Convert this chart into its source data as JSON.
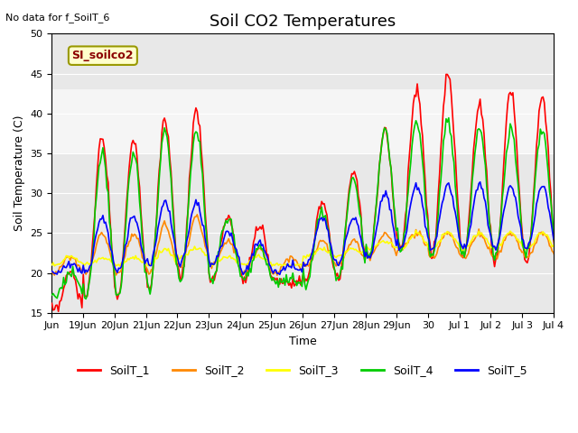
{
  "title": "Soil CO2 Temperatures",
  "xlabel": "Time",
  "ylabel": "Soil Temperature (C)",
  "note": "No data for f_SoilT_6",
  "legend_label": "SI_soilco2",
  "ylim": [
    15,
    50
  ],
  "series_colors": {
    "SoilT_1": "#ff0000",
    "SoilT_2": "#ff8800",
    "SoilT_3": "#ffff00",
    "SoilT_4": "#00cc00",
    "SoilT_5": "#0000ff"
  },
  "legend_entries": [
    "SoilT_1",
    "SoilT_2",
    "SoilT_3",
    "SoilT_4",
    "SoilT_5"
  ],
  "x_tick_labels_display": [
    "Jun",
    "19Jun",
    "20Jun",
    "21Jun",
    "22Jun",
    "23Jun",
    "24Jun",
    "25Jun",
    "26Jun",
    "27Jun",
    "28Jun",
    "29Jun",
    "30",
    "Jul 1",
    "Jul 2",
    "Jul 3",
    "Jul 4"
  ],
  "shaded_region": [
    35,
    43
  ],
  "background_color": "#ffffff",
  "plot_bg_color": "#e8e8e8",
  "linewidth": 1.2,
  "title_fontsize": 13,
  "axis_fontsize": 9,
  "tick_fontsize": 8
}
